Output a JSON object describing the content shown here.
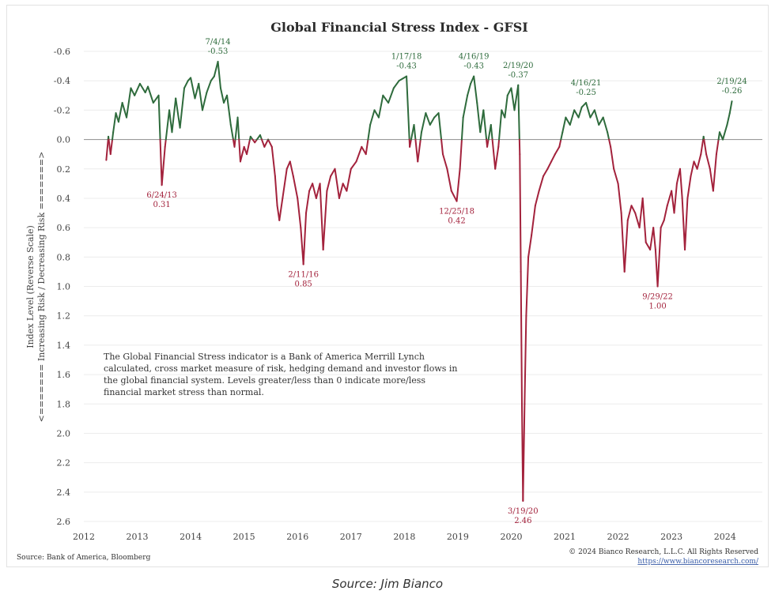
{
  "caption": "Source: Jim Bianco",
  "footer": {
    "source": "Source: Bank of America, Bloomberg",
    "copyright": "© 2024 Bianco Research, L.L.C. All Rights Reserved",
    "url": "https://www.biancoresearch.com/"
  },
  "note_lines": [
    "The Global Financial Stress indicator is a Bank of America Merrill Lynch",
    "calculated, cross market measure of risk, hedging demand and investor flows in",
    "the global financial system. Levels greater/less than 0 indicate more/less",
    "financial market stress than normal."
  ],
  "colors": {
    "low_stress": "#2e6b3c",
    "high_stress": "#a3223c",
    "zero_line": "#9a9a9a",
    "grid": "#ececec"
  },
  "chart_data": {
    "type": "line",
    "title": "Global Financial Stress Index - GFSI",
    "ylabel": [
      "Index Level (Reverse Scale)",
      "<======= Increasing Risk / Decreasing Risk =======>"
    ],
    "y_reversed": true,
    "ylim": [
      -0.6,
      2.6
    ],
    "yticks": [
      "-0.6",
      "-0.4",
      "-0.2",
      "0.0",
      "0.2",
      "0.4",
      "0.6",
      "0.8",
      "1.0",
      "1.2",
      "1.4",
      "1.6",
      "1.8",
      "2.0",
      "2.2",
      "2.4",
      "2.6"
    ],
    "xticks": [
      "2012",
      "2013",
      "2014",
      "2015",
      "2016",
      "2017",
      "2018",
      "2019",
      "2020",
      "2021",
      "2022",
      "2023",
      "2024"
    ],
    "xlim": [
      2012.0,
      2024.7
    ],
    "grid": "horizontal",
    "series": [
      {
        "points": [
          [
            2012.42,
            0.14
          ],
          [
            2012.46,
            -0.02
          ],
          [
            2012.5,
            0.1
          ],
          [
            2012.55,
            -0.05
          ],
          [
            2012.6,
            -0.18
          ],
          [
            2012.65,
            -0.12
          ],
          [
            2012.72,
            -0.25
          ],
          [
            2012.8,
            -0.15
          ],
          [
            2012.88,
            -0.35
          ],
          [
            2012.95,
            -0.3
          ],
          [
            2013.05,
            -0.38
          ],
          [
            2013.15,
            -0.32
          ],
          [
            2013.2,
            -0.36
          ],
          [
            2013.3,
            -0.25
          ],
          [
            2013.4,
            -0.3
          ],
          [
            2013.46,
            0.31
          ],
          [
            2013.52,
            0.05
          ],
          [
            2013.6,
            -0.2
          ],
          [
            2013.65,
            -0.05
          ],
          [
            2013.72,
            -0.28
          ],
          [
            2013.8,
            -0.08
          ],
          [
            2013.88,
            -0.35
          ],
          [
            2013.95,
            -0.4
          ],
          [
            2014.0,
            -0.42
          ],
          [
            2014.08,
            -0.28
          ],
          [
            2014.15,
            -0.38
          ],
          [
            2014.22,
            -0.2
          ],
          [
            2014.3,
            -0.32
          ],
          [
            2014.38,
            -0.4
          ],
          [
            2014.44,
            -0.43
          ],
          [
            2014.51,
            -0.53
          ],
          [
            2014.56,
            -0.35
          ],
          [
            2014.62,
            -0.25
          ],
          [
            2014.68,
            -0.3
          ],
          [
            2014.75,
            -0.1
          ],
          [
            2014.82,
            0.05
          ],
          [
            2014.88,
            -0.15
          ],
          [
            2014.93,
            0.15
          ],
          [
            2015.0,
            0.05
          ],
          [
            2015.05,
            0.1
          ],
          [
            2015.12,
            -0.02
          ],
          [
            2015.2,
            0.02
          ],
          [
            2015.3,
            -0.03
          ],
          [
            2015.38,
            0.05
          ],
          [
            2015.45,
            0.0
          ],
          [
            2015.52,
            0.05
          ],
          [
            2015.58,
            0.25
          ],
          [
            2015.62,
            0.45
          ],
          [
            2015.66,
            0.55
          ],
          [
            2015.72,
            0.4
          ],
          [
            2015.8,
            0.2
          ],
          [
            2015.86,
            0.15
          ],
          [
            2015.92,
            0.25
          ],
          [
            2016.0,
            0.4
          ],
          [
            2016.06,
            0.6
          ],
          [
            2016.11,
            0.85
          ],
          [
            2016.16,
            0.5
          ],
          [
            2016.22,
            0.35
          ],
          [
            2016.28,
            0.3
          ],
          [
            2016.35,
            0.4
          ],
          [
            2016.42,
            0.3
          ],
          [
            2016.48,
            0.75
          ],
          [
            2016.55,
            0.35
          ],
          [
            2016.62,
            0.25
          ],
          [
            2016.7,
            0.2
          ],
          [
            2016.78,
            0.4
          ],
          [
            2016.85,
            0.3
          ],
          [
            2016.92,
            0.35
          ],
          [
            2017.0,
            0.2
          ],
          [
            2017.1,
            0.15
          ],
          [
            2017.2,
            0.05
          ],
          [
            2017.28,
            0.1
          ],
          [
            2017.36,
            -0.1
          ],
          [
            2017.44,
            -0.2
          ],
          [
            2017.52,
            -0.15
          ],
          [
            2017.6,
            -0.3
          ],
          [
            2017.7,
            -0.25
          ],
          [
            2017.8,
            -0.35
          ],
          [
            2017.9,
            -0.4
          ],
          [
            2018.04,
            -0.43
          ],
          [
            2018.1,
            0.05
          ],
          [
            2018.18,
            -0.1
          ],
          [
            2018.25,
            0.15
          ],
          [
            2018.32,
            -0.05
          ],
          [
            2018.4,
            -0.18
          ],
          [
            2018.48,
            -0.1
          ],
          [
            2018.56,
            -0.15
          ],
          [
            2018.64,
            -0.18
          ],
          [
            2018.72,
            0.1
          ],
          [
            2018.8,
            0.2
          ],
          [
            2018.88,
            0.35
          ],
          [
            2018.98,
            0.42
          ],
          [
            2019.04,
            0.2
          ],
          [
            2019.1,
            -0.15
          ],
          [
            2019.18,
            -0.3
          ],
          [
            2019.24,
            -0.38
          ],
          [
            2019.3,
            -0.43
          ],
          [
            2019.36,
            -0.25
          ],
          [
            2019.42,
            -0.05
          ],
          [
            2019.48,
            -0.2
          ],
          [
            2019.55,
            0.05
          ],
          [
            2019.62,
            -0.1
          ],
          [
            2019.7,
            0.2
          ],
          [
            2019.76,
            0.05
          ],
          [
            2019.82,
            -0.2
          ],
          [
            2019.88,
            -0.15
          ],
          [
            2019.93,
            -0.3
          ],
          [
            2020.0,
            -0.35
          ],
          [
            2020.06,
            -0.2
          ],
          [
            2020.13,
            -0.37
          ],
          [
            2020.16,
            0.1
          ],
          [
            2020.18,
            0.9
          ],
          [
            2020.2,
            1.8
          ],
          [
            2020.22,
            2.46
          ],
          [
            2020.25,
            1.8
          ],
          [
            2020.28,
            1.2
          ],
          [
            2020.32,
            0.8
          ],
          [
            2020.38,
            0.65
          ],
          [
            2020.45,
            0.45
          ],
          [
            2020.52,
            0.35
          ],
          [
            2020.6,
            0.25
          ],
          [
            2020.68,
            0.2
          ],
          [
            2020.75,
            0.15
          ],
          [
            2020.82,
            0.1
          ],
          [
            2020.9,
            0.05
          ],
          [
            2020.96,
            -0.05
          ],
          [
            2021.02,
            -0.15
          ],
          [
            2021.1,
            -0.1
          ],
          [
            2021.18,
            -0.2
          ],
          [
            2021.26,
            -0.15
          ],
          [
            2021.32,
            -0.22
          ],
          [
            2021.4,
            -0.25
          ],
          [
            2021.48,
            -0.15
          ],
          [
            2021.56,
            -0.2
          ],
          [
            2021.64,
            -0.1
          ],
          [
            2021.72,
            -0.15
          ],
          [
            2021.8,
            -0.05
          ],
          [
            2021.86,
            0.05
          ],
          [
            2021.92,
            0.2
          ],
          [
            2022.0,
            0.3
          ],
          [
            2022.06,
            0.5
          ],
          [
            2022.12,
            0.9
          ],
          [
            2022.18,
            0.55
          ],
          [
            2022.25,
            0.45
          ],
          [
            2022.32,
            0.5
          ],
          [
            2022.4,
            0.6
          ],
          [
            2022.46,
            0.4
          ],
          [
            2022.52,
            0.7
          ],
          [
            2022.6,
            0.75
          ],
          [
            2022.66,
            0.6
          ],
          [
            2022.7,
            0.75
          ],
          [
            2022.74,
            1.0
          ],
          [
            2022.8,
            0.6
          ],
          [
            2022.86,
            0.55
          ],
          [
            2022.92,
            0.45
          ],
          [
            2023.0,
            0.35
          ],
          [
            2023.05,
            0.5
          ],
          [
            2023.1,
            0.3
          ],
          [
            2023.16,
            0.2
          ],
          [
            2023.2,
            0.4
          ],
          [
            2023.25,
            0.75
          ],
          [
            2023.3,
            0.4
          ],
          [
            2023.36,
            0.25
          ],
          [
            2023.42,
            0.15
          ],
          [
            2023.48,
            0.2
          ],
          [
            2023.55,
            0.1
          ],
          [
            2023.6,
            -0.02
          ],
          [
            2023.65,
            0.1
          ],
          [
            2023.72,
            0.2
          ],
          [
            2023.78,
            0.35
          ],
          [
            2023.84,
            0.1
          ],
          [
            2023.9,
            -0.05
          ],
          [
            2023.96,
            0.0
          ],
          [
            2024.04,
            -0.1
          ],
          [
            2024.09,
            -0.18
          ],
          [
            2024.13,
            -0.26
          ]
        ]
      }
    ],
    "annotations": [
      {
        "date": "6/24/13",
        "value": "0.31",
        "x": 2013.46,
        "y": 0.31,
        "side": "below",
        "color": "red"
      },
      {
        "date": "7/4/14",
        "value": "-0.53",
        "x": 2014.51,
        "y": -0.53,
        "side": "above",
        "color": "green"
      },
      {
        "date": "2/11/16",
        "value": "0.85",
        "x": 2016.11,
        "y": 0.85,
        "side": "below",
        "color": "red"
      },
      {
        "date": "1/17/18",
        "value": "-0.43",
        "x": 2018.04,
        "y": -0.43,
        "side": "above",
        "color": "green"
      },
      {
        "date": "12/25/18",
        "value": "0.42",
        "x": 2018.98,
        "y": 0.42,
        "side": "below",
        "color": "red"
      },
      {
        "date": "4/16/19",
        "value": "-0.43",
        "x": 2019.3,
        "y": -0.43,
        "side": "above",
        "color": "green"
      },
      {
        "date": "2/19/20",
        "value": "-0.37",
        "x": 2020.13,
        "y": -0.37,
        "side": "above",
        "color": "green"
      },
      {
        "date": "3/19/20",
        "value": "2.46",
        "x": 2020.22,
        "y": 2.46,
        "side": "below",
        "color": "red"
      },
      {
        "date": "4/16/21",
        "value": "-0.25",
        "x": 2021.4,
        "y": -0.25,
        "side": "above",
        "color": "green"
      },
      {
        "date": "9/29/22",
        "value": "1.00",
        "x": 2022.74,
        "y": 1.0,
        "side": "below",
        "color": "red"
      },
      {
        "date": "2/19/24",
        "value": "-0.26",
        "x": 2024.13,
        "y": -0.26,
        "side": "above",
        "color": "green"
      }
    ]
  }
}
